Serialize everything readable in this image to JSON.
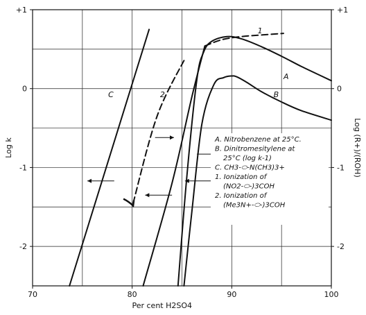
{
  "chart_data": {
    "type": "line",
    "title": "",
    "xlabel": "Per cent H2SO4",
    "ylabel_left": "Log k",
    "ylabel_right": "Log (R+)/(ROH)",
    "xlim": [
      70,
      100
    ],
    "ylim": [
      -2.5,
      1
    ],
    "x_ticks": [
      70,
      80,
      90,
      100
    ],
    "x_tick_labels": [
      "70",
      "80",
      "90",
      "100"
    ],
    "y_ticks": [
      1,
      0,
      -1,
      -2
    ],
    "y_tick_labels_left": [
      "+1",
      "0",
      "-1",
      "-2"
    ],
    "y_tick_labels_right": [
      "+1",
      "0",
      "-1",
      "-2"
    ],
    "grid": true,
    "series": [
      {
        "name": "A",
        "style": "solid",
        "x": [
          84.6,
          85.5,
          86.5,
          87.2,
          88.0,
          89.5,
          91.0,
          93.0,
          95.0,
          97.0,
          99.0,
          100.0
        ],
        "y": [
          -2.5,
          -1.1,
          0.12,
          0.47,
          0.6,
          0.66,
          0.63,
          0.53,
          0.41,
          0.28,
          0.16,
          0.1
        ]
      },
      {
        "name": "B",
        "style": "solid",
        "x": [
          85.2,
          86.0,
          87.0,
          88.2,
          89.2,
          90.0,
          90.5,
          91.5,
          93.0,
          95.0,
          97.0,
          100.0
        ],
        "y": [
          -2.5,
          -1.55,
          -0.45,
          0.05,
          0.14,
          0.16,
          0.15,
          0.08,
          -0.04,
          -0.17,
          -0.28,
          -0.4
        ]
      },
      {
        "name": "C",
        "style": "solid",
        "x": [
          73.7,
          81.7
        ],
        "y": [
          -2.5,
          0.75
        ]
      },
      {
        "name": "1",
        "style": "dashed",
        "x": [
          87.3,
          89.0,
          91.0,
          93.0,
          95.2
        ],
        "y": [
          0.54,
          0.62,
          0.66,
          0.68,
          0.7
        ]
      },
      {
        "name": "1-solid-lower",
        "style": "solid",
        "x": [
          81.1,
          84.0,
          86.0,
          87.3
        ],
        "y": [
          -2.5,
          -1.2,
          -0.1,
          0.54
        ]
      },
      {
        "name": "2",
        "style": "dashed",
        "x": [
          80.1,
          82.5,
          85.3
        ],
        "y": [
          -1.45,
          -0.35,
          0.38
        ]
      }
    ],
    "curve_labels": [
      "A",
      "B",
      "C",
      "1",
      "2"
    ],
    "legend": {
      "placement": "right-middle",
      "items": [
        {
          "lines": [
            "A. Nitrobenzene at 25°C."
          ]
        },
        {
          "lines": [
            "B. Dinitromesitylene at",
            "25°C (log k-1)"
          ]
        },
        {
          "lines": [
            "C. CH3-⬭-N(CH3)3+"
          ]
        },
        {
          "lines": [
            "1. Ionization of",
            "(NO2-⬭-)3COH"
          ]
        },
        {
          "lines": [
            "2. Ionization of",
            "(Me3N+-⬭-)3COH"
          ]
        }
      ]
    }
  }
}
